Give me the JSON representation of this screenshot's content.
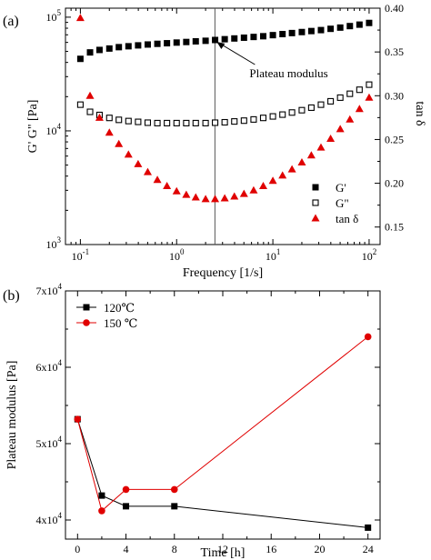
{
  "chart_data": [
    {
      "type": "scatter",
      "panel_label": "(a)",
      "xlabel": "Frequency [1/s]",
      "ylabel": "G' G\" [Pa]",
      "y2label": "tan δ",
      "xscale": "log",
      "yscale": "log",
      "xlim": [
        0.07,
        130
      ],
      "ylim": [
        1000,
        120000
      ],
      "y2lim": [
        0.13,
        0.4
      ],
      "x_ticks": [
        {
          "v": 0.1,
          "base": "10",
          "exp": "-1"
        },
        {
          "v": 1,
          "base": "10",
          "exp": "0"
        },
        {
          "v": 10,
          "base": "10",
          "exp": "1"
        },
        {
          "v": 100,
          "base": "10",
          "exp": "2"
        }
      ],
      "y_ticks": [
        {
          "v": 1000,
          "base": "10",
          "exp": "3"
        },
        {
          "v": 10000,
          "base": "10",
          "exp": "4"
        },
        {
          "v": 100000,
          "base": "10",
          "exp": "5"
        }
      ],
      "y2_ticks": [
        "0.15",
        "0.20",
        "0.25",
        "0.30",
        "0.35",
        "0.40"
      ],
      "vline_x": 2.5,
      "annotation": {
        "text": "Plateau modulus",
        "x": 2.5,
        "y": 63000
      },
      "legend": "right",
      "x": [
        0.1,
        0.126,
        0.158,
        0.2,
        0.251,
        0.316,
        0.398,
        0.501,
        0.631,
        0.794,
        1.0,
        1.26,
        1.58,
        2.0,
        2.51,
        3.16,
        3.98,
        5.01,
        6.31,
        7.94,
        10.0,
        12.6,
        15.8,
        20.0,
        25.1,
        31.6,
        39.8,
        50.1,
        63.1,
        79.4,
        100
      ],
      "series": [
        {
          "name": "G'",
          "axis": "left",
          "marker": "filled-square",
          "color": "#000000",
          "values": [
            43000,
            49000,
            51500,
            53000,
            54500,
            55500,
            56500,
            57500,
            58300,
            59000,
            59800,
            60500,
            61300,
            62000,
            63000,
            64000,
            65000,
            66000,
            67000,
            68000,
            69500,
            71000,
            72500,
            74000,
            75500,
            77000,
            79000,
            81000,
            83500,
            86000,
            89000
          ]
        },
        {
          "name": "G\"",
          "axis": "left",
          "marker": "open-square",
          "color": "#000000",
          "values": [
            17000,
            14700,
            13800,
            13000,
            12500,
            12200,
            12000,
            11800,
            11700,
            11700,
            11700,
            11700,
            11700,
            11700,
            11800,
            11900,
            12100,
            12300,
            12600,
            13000,
            13400,
            13900,
            14500,
            15200,
            16000,
            17000,
            18200,
            19600,
            21200,
            23000,
            25500
          ]
        },
        {
          "name": "tan δ",
          "axis": "right",
          "marker": "filled-triangle",
          "color": "#e00000",
          "values": [
            0.389,
            0.3,
            0.275,
            0.258,
            0.245,
            0.233,
            0.222,
            0.213,
            0.204,
            0.197,
            0.191,
            0.187,
            0.184,
            0.182,
            0.182,
            0.183,
            0.185,
            0.188,
            0.192,
            0.197,
            0.203,
            0.209,
            0.216,
            0.224,
            0.232,
            0.241,
            0.251,
            0.262,
            0.273,
            0.285,
            0.298
          ]
        }
      ]
    },
    {
      "type": "line",
      "panel_label": "(b)",
      "xlabel": "Time [h]",
      "ylabel": "Plateau modulus [Pa]",
      "xlim": [
        -1,
        25
      ],
      "ylim": [
        37500,
        70000
      ],
      "x_ticks": [
        "0",
        "4",
        "8",
        "12",
        "16",
        "20",
        "24"
      ],
      "y_ticks": [
        {
          "v": 40000,
          "mant": "4x10",
          "exp": "4"
        },
        {
          "v": 50000,
          "mant": "5x10",
          "exp": "4"
        },
        {
          "v": 60000,
          "mant": "6x10",
          "exp": "4"
        },
        {
          "v": 70000,
          "mant": "7x10",
          "exp": "4"
        }
      ],
      "legend": "top-left",
      "series": [
        {
          "name": "120℃",
          "marker": "filled-square",
          "color": "#000000",
          "x": [
            0,
            2,
            4,
            8,
            24
          ],
          "values": [
            53200,
            43200,
            41800,
            41800,
            39000
          ]
        },
        {
          "name": "150 ℃",
          "marker": "filled-circle",
          "color": "#e00000",
          "x": [
            0,
            2,
            4,
            8,
            24
          ],
          "values": [
            53200,
            41200,
            44000,
            44000,
            64000
          ]
        }
      ]
    }
  ]
}
